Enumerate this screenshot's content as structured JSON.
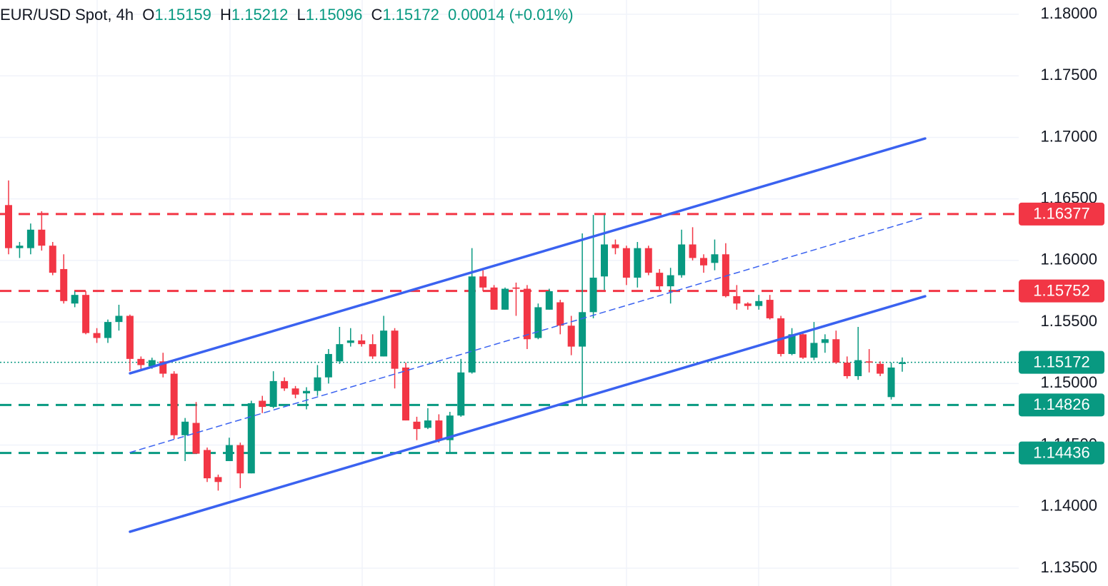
{
  "chart_data": {
    "type": "candlestick",
    "title": "EUR/USD Spot, 4h",
    "header": [
      {
        "label": "O",
        "value": "1.15159"
      },
      {
        "label": "H",
        "value": "1.15212"
      },
      {
        "label": "L",
        "value": "1.15096"
      },
      {
        "label": "C",
        "value": "1.15172"
      }
    ],
    "change": "0.00014",
    "change_percent": "(+0.01%)",
    "up_color": "#089981",
    "down_color": "#f23645",
    "open": [
      1.1645,
      1.161,
      1.161,
      1.1625,
      1.1612,
      1.1593,
      1.1565,
      1.1572,
      1.1541,
      1.1537,
      1.155,
      1.1555,
      1.152,
      1.1514,
      1.1518,
      1.1508,
      1.1458,
      1.1468,
      1.1446,
      1.1424,
      1.1437,
      1.145,
      1.1427,
      1.1486,
      1.1481,
      1.1502,
      1.1496,
      1.1492,
      1.1494,
      1.1505,
      1.1518,
      1.1533,
      1.1535,
      1.1532,
      1.1522,
      1.1543,
      1.1513,
      1.1469,
      1.1464,
      1.147,
      1.1454,
      1.1474,
      1.1509,
      1.1587,
      1.1578,
      1.156,
      1.1578,
      1.1577,
      1.1537,
      1.156,
      1.1566,
      1.1547,
      1.153,
      1.1558,
      1.1587,
      1.1613,
      1.161,
      1.1586,
      1.161,
      1.159,
      1.1579,
      1.1588,
      1.1613,
      1.1602,
      1.1598,
      1.1605,
      1.1571,
      1.1565,
      1.1563,
      1.1568,
      1.1553,
      1.1524,
      1.154,
      1.1521,
      1.1533,
      1.1536,
      1.1517,
      1.1506,
      1.1518,
      1.1516,
      1.1489,
      1.15159
    ],
    "high": [
      1.1665,
      1.1615,
      1.163,
      1.164,
      1.1615,
      1.1605,
      1.1575,
      1.1575,
      1.1545,
      1.1552,
      1.1564,
      1.1556,
      1.1522,
      1.1521,
      1.1525,
      1.151,
      1.1472,
      1.1485,
      1.1448,
      1.1426,
      1.1456,
      1.1452,
      1.1486,
      1.149,
      1.151,
      1.1505,
      1.1498,
      1.1497,
      1.1515,
      1.1528,
      1.1546,
      1.1545,
      1.154,
      1.154,
      1.1555,
      1.1545,
      1.1517,
      1.1473,
      1.148,
      1.1475,
      1.1477,
      1.152,
      1.161,
      1.1592,
      1.158,
      1.1578,
      1.1582,
      1.158,
      1.1565,
      1.1577,
      1.1568,
      1.1555,
      1.1622,
      1.1637,
      1.1637,
      1.1617,
      1.1612,
      1.1615,
      1.1612,
      1.1593,
      1.1594,
      1.1625,
      1.1627,
      1.1605,
      1.1617,
      1.1614,
      1.158,
      1.1566,
      1.1572,
      1.1572,
      1.1555,
      1.1545,
      1.1542,
      1.155,
      1.154,
      1.1543,
      1.1522,
      1.1546,
      1.1528,
      1.1518,
      1.1517,
      1.15212
    ],
    "low": [
      1.1605,
      1.1602,
      1.1605,
      1.1608,
      1.1588,
      1.1565,
      1.1562,
      1.154,
      1.1533,
      1.1533,
      1.1543,
      1.151,
      1.151,
      1.1512,
      1.1505,
      1.1455,
      1.1437,
      1.1443,
      1.142,
      1.1413,
      1.1437,
      1.1415,
      1.1427,
      1.1476,
      1.148,
      1.1494,
      1.1488,
      1.1479,
      1.149,
      1.15,
      1.1516,
      1.153,
      1.153,
      1.152,
      1.1522,
      1.1496,
      1.147,
      1.1454,
      1.1463,
      1.1452,
      1.1444,
      1.1473,
      1.1508,
      1.1575,
      1.156,
      1.156,
      1.1555,
      1.1528,
      1.1536,
      1.156,
      1.154,
      1.1523,
      1.1483,
      1.1553,
      1.1576,
      1.1605,
      1.158,
      1.1578,
      1.1588,
      1.1576,
      1.1565,
      1.1586,
      1.16,
      1.159,
      1.1592,
      1.157,
      1.156,
      1.156,
      1.156,
      1.1552,
      1.1522,
      1.1523,
      1.152,
      1.1519,
      1.1525,
      1.1516,
      1.1504,
      1.1503,
      1.1509,
      1.1506,
      1.1487,
      1.15096
    ],
    "close": [
      1.161,
      1.1612,
      1.1625,
      1.1612,
      1.159,
      1.1567,
      1.1572,
      1.1541,
      1.1537,
      1.155,
      1.1555,
      1.152,
      1.1515,
      1.1519,
      1.1508,
      1.1458,
      1.1469,
      1.1443,
      1.1423,
      1.142,
      1.145,
      1.1427,
      1.1484,
      1.1481,
      1.1502,
      1.1496,
      1.1491,
      1.1494,
      1.1505,
      1.1524,
      1.1532,
      1.1535,
      1.1532,
      1.1522,
      1.1543,
      1.1512,
      1.147,
      1.1463,
      1.147,
      1.1454,
      1.1474,
      1.1509,
      1.1587,
      1.1578,
      1.156,
      1.1577,
      1.1577,
      1.1536,
      1.1562,
      1.1575,
      1.1547,
      1.153,
      1.1558,
      1.1586,
      1.1613,
      1.161,
      1.1586,
      1.161,
      1.159,
      1.1579,
      1.1588,
      1.1613,
      1.1602,
      1.1596,
      1.1605,
      1.1571,
      1.1565,
      1.1563,
      1.1567,
      1.1553,
      1.1524,
      1.154,
      1.1521,
      1.1533,
      1.1536,
      1.1517,
      1.1506,
      1.1519,
      1.1517,
      1.1508,
      1.1513,
      1.15172
    ],
    "ylim": [
      1.13355,
      1.18116
    ],
    "yticks": [
      {
        "value": 1.18,
        "label": "1.18000"
      },
      {
        "value": 1.175,
        "label": "1.17500"
      },
      {
        "value": 1.17,
        "label": "1.17000"
      },
      {
        "value": 1.165,
        "label": "1.16500"
      },
      {
        "value": 1.16,
        "label": "1.16000"
      },
      {
        "value": 1.155,
        "label": "1.15500"
      },
      {
        "value": 1.15,
        "label": "1.15000"
      },
      {
        "value": 1.145,
        "label": "1.14500"
      },
      {
        "value": 1.14,
        "label": "1.14000"
      },
      {
        "value": 1.135,
        "label": "1.13500"
      }
    ],
    "grid": true,
    "levels": [
      {
        "value": 1.16377,
        "color": "#f23645"
      },
      {
        "value": 1.15752,
        "color": "#f23645"
      },
      {
        "value": 1.14826,
        "color": "#089981"
      },
      {
        "value": 1.14436,
        "color": "#089981"
      }
    ],
    "last_price": {
      "value": 1.15172,
      "color": "#089981"
    },
    "trendlines": [
      {
        "start": 1.15083,
        "end": 1.16991,
        "color": "#3a62f0",
        "style": "solid"
      },
      {
        "start": 1.1444,
        "end": 1.16353,
        "color": "#3a62f0",
        "style": "dashed"
      },
      {
        "start": 1.13796,
        "end": 1.15709,
        "color": "#3a62f0",
        "style": "solid"
      }
    ]
  }
}
